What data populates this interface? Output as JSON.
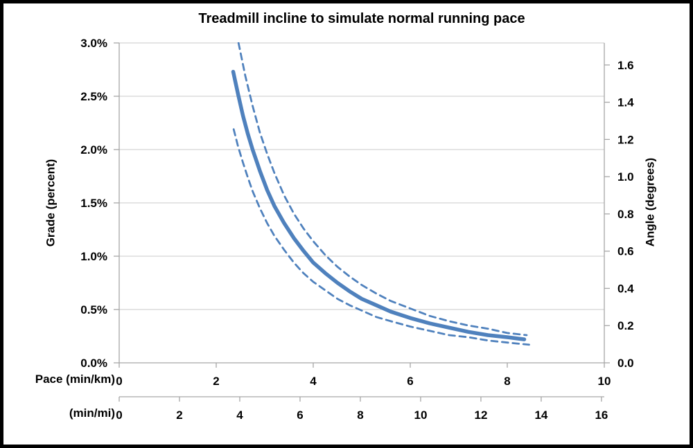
{
  "frame": {
    "background": "#FFFFFF",
    "border_color": "#000000",
    "left_edge_strip_color": "#1E3B25"
  },
  "chart_data": {
    "type": "line",
    "title": "Treadmill incline to simulate normal running pace",
    "legend": "none",
    "grid": "horizontal",
    "plot_bg": "#FFFFFF",
    "gridline_color": "#C9C9C9",
    "axis_line_color": "#A6A6A6",
    "text_color": "#000000",
    "series_color": "#4F81BD",
    "x_axis_primary": {
      "label": "Pace (min/km)",
      "min": 0,
      "max": 10,
      "ticks": [
        0,
        2,
        4,
        6,
        8,
        10
      ],
      "tick_labels": [
        "0",
        "2",
        "4",
        "6",
        "8",
        "10"
      ]
    },
    "x_axis_secondary": {
      "label": "(min/mi)",
      "min": 0,
      "max": 16.0934,
      "ticks": [
        0,
        2,
        4,
        6,
        8,
        10,
        12,
        14,
        16
      ],
      "tick_labels": [
        "0",
        "2",
        "4",
        "6",
        "8",
        "10",
        "12",
        "14",
        "16"
      ]
    },
    "y_axis_left": {
      "label": "Grade (percent)",
      "min": 0,
      "max": 3.0,
      "ticks": [
        0,
        0.5,
        1.0,
        1.5,
        2.0,
        2.5,
        3.0
      ],
      "tick_labels": [
        "0.0%",
        "0.5%",
        "1.0%",
        "1.5%",
        "2.0%",
        "2.5%",
        "3.0%"
      ]
    },
    "y_axis_right": {
      "label": "Angle (degrees)",
      "min": 0,
      "max": 1.7184,
      "ticks": [
        0,
        0.2,
        0.4,
        0.6,
        0.8,
        1.0,
        1.2,
        1.4,
        1.6
      ],
      "tick_labels": [
        "0.0",
        "0.2",
        "0.4",
        "0.6",
        "0.8",
        "1.0",
        "1.2",
        "1.4",
        "1.6"
      ]
    },
    "series": [
      {
        "name": "grade-main-curve",
        "style": "solid",
        "color": "#4F81BD",
        "stroke_width": 5.5,
        "points": [
          [
            2.35,
            2.73
          ],
          [
            2.45,
            2.52
          ],
          [
            2.55,
            2.32
          ],
          [
            2.65,
            2.15
          ],
          [
            2.75,
            2.0
          ],
          [
            2.9,
            1.8
          ],
          [
            3.05,
            1.62
          ],
          [
            3.2,
            1.47
          ],
          [
            3.4,
            1.31
          ],
          [
            3.6,
            1.17
          ],
          [
            3.8,
            1.05
          ],
          [
            4.0,
            0.94
          ],
          [
            4.25,
            0.84
          ],
          [
            4.5,
            0.75
          ],
          [
            4.75,
            0.67
          ],
          [
            5.0,
            0.6
          ],
          [
            5.3,
            0.54
          ],
          [
            5.6,
            0.48
          ],
          [
            6.0,
            0.42
          ],
          [
            6.4,
            0.37
          ],
          [
            6.8,
            0.33
          ],
          [
            7.2,
            0.29
          ],
          [
            7.6,
            0.26
          ],
          [
            8.0,
            0.24
          ],
          [
            8.35,
            0.22
          ]
        ]
      },
      {
        "name": "grade-upper-dashed-bound",
        "style": "dashed",
        "color": "#4F81BD",
        "stroke_width": 2.8,
        "points": [
          [
            2.46,
            3.0
          ],
          [
            2.6,
            2.69
          ],
          [
            2.75,
            2.41
          ],
          [
            2.9,
            2.16
          ],
          [
            3.05,
            1.96
          ],
          [
            3.2,
            1.78
          ],
          [
            3.4,
            1.57
          ],
          [
            3.6,
            1.4
          ],
          [
            3.8,
            1.26
          ],
          [
            4.0,
            1.14
          ],
          [
            4.25,
            1.01
          ],
          [
            4.5,
            0.9
          ],
          [
            4.75,
            0.81
          ],
          [
            5.0,
            0.73
          ],
          [
            5.3,
            0.65
          ],
          [
            5.6,
            0.58
          ],
          [
            6.0,
            0.51
          ],
          [
            6.4,
            0.44
          ],
          [
            6.8,
            0.39
          ],
          [
            7.2,
            0.35
          ],
          [
            7.6,
            0.32
          ],
          [
            8.0,
            0.28
          ],
          [
            8.4,
            0.26
          ]
        ]
      },
      {
        "name": "grade-lower-dashed-bound",
        "style": "dashed",
        "color": "#4F81BD",
        "stroke_width": 2.8,
        "points": [
          [
            2.36,
            2.19
          ],
          [
            2.45,
            2.03
          ],
          [
            2.55,
            1.88
          ],
          [
            2.65,
            1.74
          ],
          [
            2.75,
            1.61
          ],
          [
            2.9,
            1.45
          ],
          [
            3.05,
            1.31
          ],
          [
            3.2,
            1.19
          ],
          [
            3.4,
            1.06
          ],
          [
            3.6,
            0.94
          ],
          [
            3.8,
            0.84
          ],
          [
            4.0,
            0.76
          ],
          [
            4.25,
            0.68
          ],
          [
            4.5,
            0.6
          ],
          [
            4.75,
            0.54
          ],
          [
            5.0,
            0.49
          ],
          [
            5.3,
            0.43
          ],
          [
            5.6,
            0.39
          ],
          [
            6.0,
            0.34
          ],
          [
            6.4,
            0.3
          ],
          [
            6.8,
            0.26
          ],
          [
            7.2,
            0.24
          ],
          [
            7.6,
            0.21
          ],
          [
            8.0,
            0.19
          ],
          [
            8.45,
            0.17
          ]
        ]
      }
    ]
  }
}
